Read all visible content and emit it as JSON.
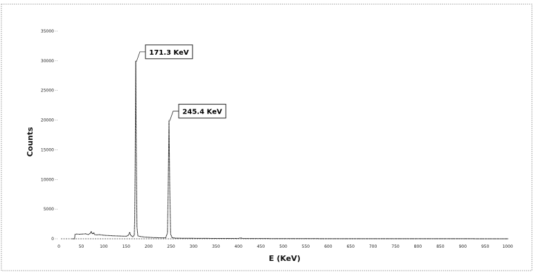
{
  "chart_data": {
    "type": "line",
    "title": "",
    "xlabel": "E (KeV)",
    "ylabel": "Counts",
    "xlim": [
      0,
      1000
    ],
    "ylim": [
      0,
      35000
    ],
    "x_ticks": [
      "0",
      "50",
      "100",
      "150",
      "200",
      "250",
      "300",
      "350",
      "400",
      "450",
      "500",
      "550",
      "600",
      "650",
      "700",
      "750",
      "800",
      "850",
      "900",
      "950",
      "1000"
    ],
    "y_ticks": [
      "0",
      "5000",
      "10000",
      "15000",
      "20000",
      "25000",
      "30000",
      "35000"
    ],
    "grid": false,
    "legend": "none",
    "series": [
      {
        "color": "#000000",
        "x": [
          30,
          35,
          36,
          40,
          45,
          50,
          55,
          60,
          65,
          70,
          72,
          75,
          78,
          80,
          85,
          90,
          95,
          100,
          110,
          120,
          130,
          140,
          150,
          155,
          158,
          160,
          163,
          165,
          168,
          169,
          170,
          171.3,
          172.5,
          174,
          176,
          180,
          190,
          200,
          210,
          220,
          230,
          238,
          242,
          243.5,
          245.4,
          247,
          249,
          252,
          260,
          300,
          350,
          400,
          405,
          410,
          450,
          500,
          600,
          700,
          800,
          900,
          1000
        ],
        "y": [
          0,
          0,
          750,
          800,
          760,
          780,
          800,
          850,
          700,
          900,
          1200,
          800,
          1000,
          700,
          650,
          700,
          650,
          600,
          550,
          500,
          480,
          450,
          420,
          600,
          1100,
          600,
          400,
          350,
          600,
          3000,
          12000,
          30000,
          15000,
          2000,
          500,
          400,
          300,
          250,
          200,
          180,
          160,
          150,
          1000,
          8000,
          20000,
          9000,
          800,
          200,
          100,
          80,
          60,
          50,
          150,
          50,
          40,
          30,
          20,
          15,
          10,
          8,
          5
        ]
      }
    ],
    "annotations": [
      {
        "text": "171.3 KeV",
        "x": 171.3,
        "y": 30000
      },
      {
        "text": "245.4 KeV",
        "x": 245.4,
        "y": 20000
      }
    ]
  }
}
